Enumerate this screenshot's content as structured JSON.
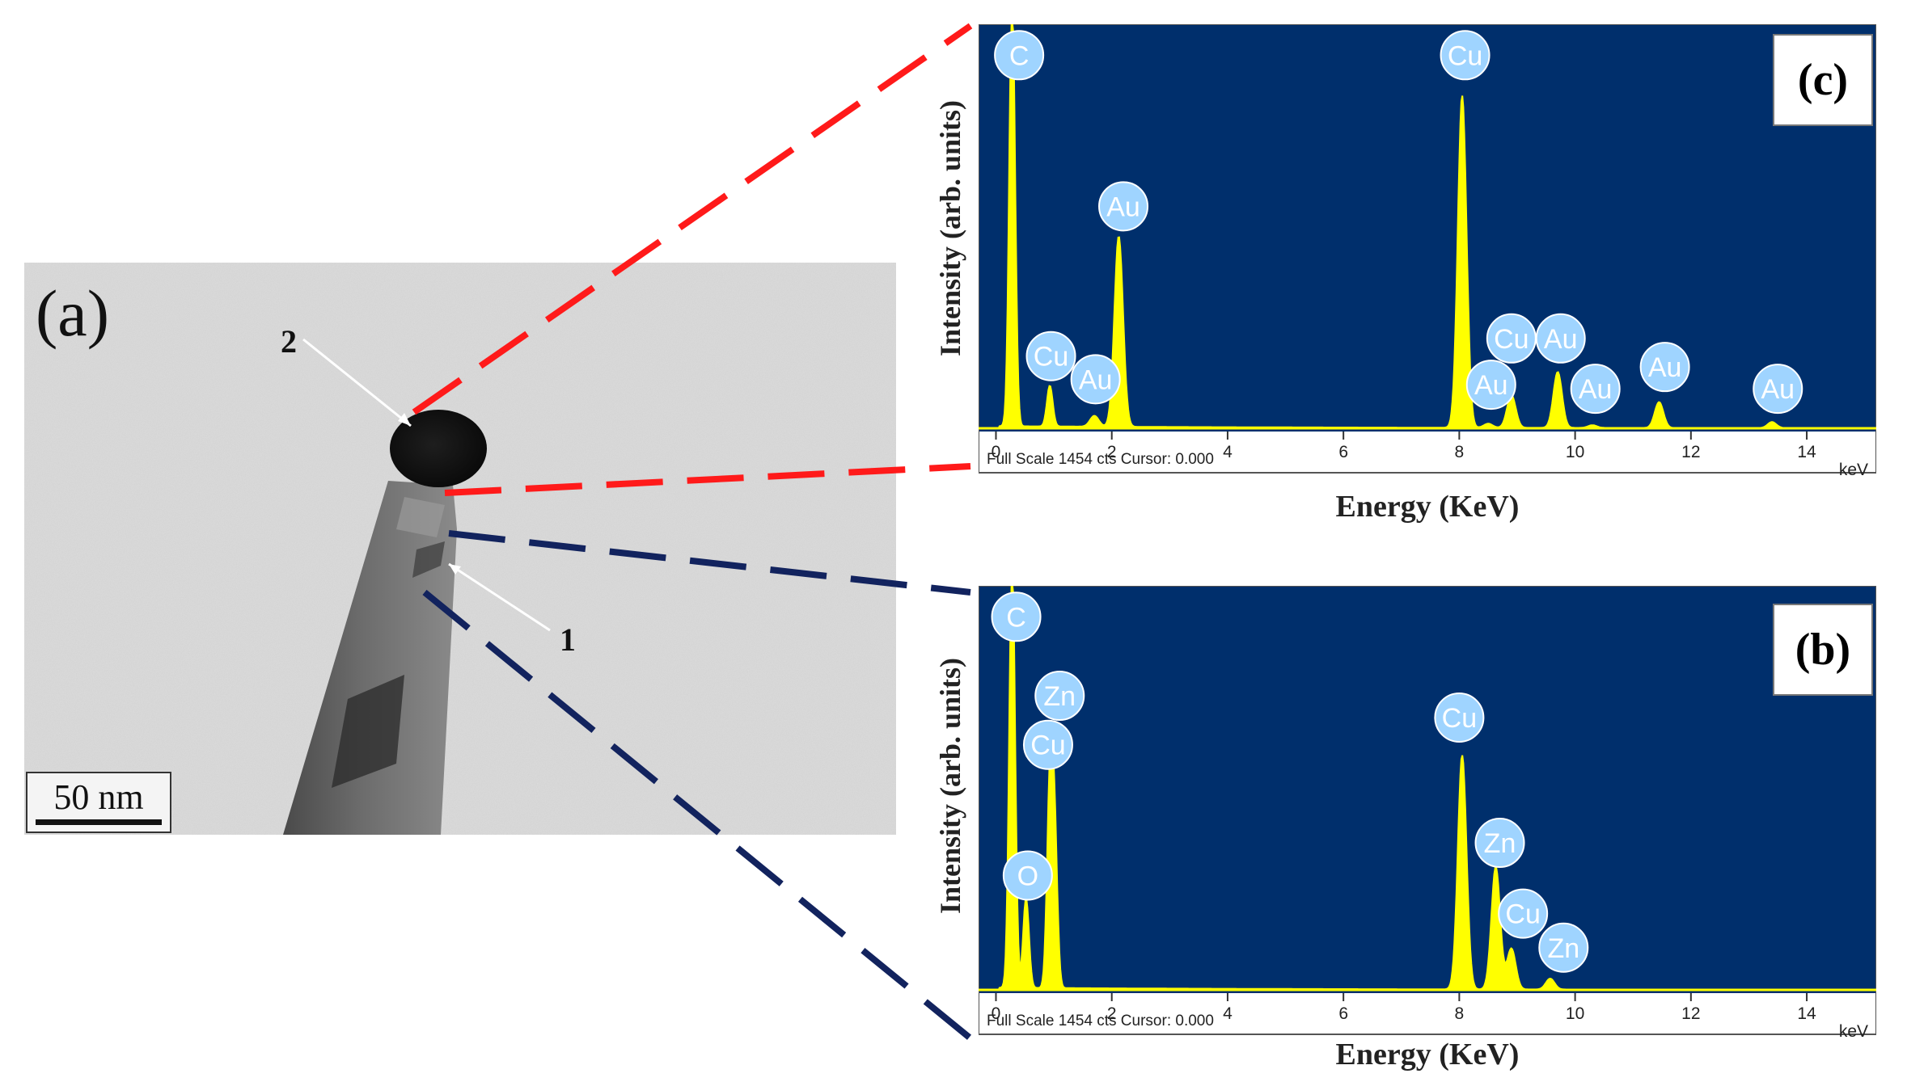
{
  "tem": {
    "panel_label": "(a)",
    "marker_1": "1",
    "marker_2": "2",
    "scalebar": "50 nm"
  },
  "colors": {
    "plot_bg": "#002f6c",
    "spectrum_fill": "#ffff00",
    "badge_fill": "#9fd4ff",
    "red_dash": "#ff1a1a",
    "blue_dash": "#12235e"
  },
  "chart_data": [
    {
      "id": "c",
      "type": "area",
      "panel_label": "(c)",
      "xlabel": "Energy (KeV)",
      "ylabel": "Intensity (arb. units)",
      "xlim": [
        -0.3,
        15.2
      ],
      "ylim": [
        0,
        1454
      ],
      "x_ticks": [
        0,
        2,
        4,
        6,
        8,
        10,
        12,
        14
      ],
      "x_unit": "keV",
      "footer": "Full Scale 1454 cts Cursor: 0.000",
      "peaks": [
        {
          "element": "C",
          "x": 0.28,
          "y": 1600
        },
        {
          "element": "Cu",
          "x": 0.93,
          "y": 150
        },
        {
          "element": "Au",
          "x": 1.7,
          "y": 40
        },
        {
          "element": "Au",
          "x": 2.12,
          "y": 700
        },
        {
          "element": "Cu",
          "x": 8.05,
          "y": 1220
        },
        {
          "element": "Au",
          "x": 8.5,
          "y": 15
        },
        {
          "element": "Cu",
          "x": 8.9,
          "y": 120
        },
        {
          "element": "Au",
          "x": 9.7,
          "y": 205
        },
        {
          "element": "Au",
          "x": 10.3,
          "y": 10
        },
        {
          "element": "Au",
          "x": 11.45,
          "y": 95
        },
        {
          "element": "Au",
          "x": 13.4,
          "y": 22
        }
      ],
      "badges": [
        {
          "text": "C",
          "x": 0.4,
          "y": 1370
        },
        {
          "text": "Au",
          "x": 2.2,
          "y": 815
        },
        {
          "text": "Cu",
          "x": 0.95,
          "y": 265
        },
        {
          "text": "Au",
          "x": 1.72,
          "y": 180
        },
        {
          "text": "Cu",
          "x": 8.1,
          "y": 1370
        },
        {
          "text": "Cu",
          "x": 8.9,
          "y": 330
        },
        {
          "text": "Au",
          "x": 9.75,
          "y": 330
        },
        {
          "text": "Au",
          "x": 8.55,
          "y": 160
        },
        {
          "text": "Au",
          "x": 10.35,
          "y": 145
        },
        {
          "text": "Au",
          "x": 11.55,
          "y": 225
        },
        {
          "text": "Au",
          "x": 13.5,
          "y": 145
        }
      ]
    },
    {
      "id": "b",
      "type": "area",
      "panel_label": "(b)",
      "xlabel": "Energy (KeV)",
      "ylabel": "Intensity (arb. units)",
      "xlim": [
        -0.3,
        15.2
      ],
      "ylim": [
        0,
        1454
      ],
      "x_ticks": [
        0,
        2,
        4,
        6,
        8,
        10,
        12,
        14
      ],
      "x_unit": "keV",
      "footer": "Full Scale 1454 cts Cursor: 0.000",
      "peaks": [
        {
          "element": "C",
          "x": 0.28,
          "y": 1600
        },
        {
          "element": "O",
          "x": 0.52,
          "y": 330
        },
        {
          "element": "Cu",
          "x": 0.93,
          "y": 700
        },
        {
          "element": "Zn",
          "x": 1.01,
          "y": 560
        },
        {
          "element": "Cu",
          "x": 8.05,
          "y": 860
        },
        {
          "element": "Zn",
          "x": 8.63,
          "y": 450
        },
        {
          "element": "Cu",
          "x": 8.9,
          "y": 150
        },
        {
          "element": "Zn",
          "x": 9.57,
          "y": 40
        }
      ],
      "badges": [
        {
          "text": "C",
          "x": 0.35,
          "y": 1370
        },
        {
          "text": "Zn",
          "x": 1.1,
          "y": 1080
        },
        {
          "text": "Cu",
          "x": 0.9,
          "y": 900
        },
        {
          "text": "O",
          "x": 0.55,
          "y": 420
        },
        {
          "text": "Cu",
          "x": 8.0,
          "y": 1000
        },
        {
          "text": "Zn",
          "x": 8.7,
          "y": 540
        },
        {
          "text": "Cu",
          "x": 9.1,
          "y": 280
        },
        {
          "text": "Zn",
          "x": 9.8,
          "y": 155
        }
      ]
    }
  ]
}
